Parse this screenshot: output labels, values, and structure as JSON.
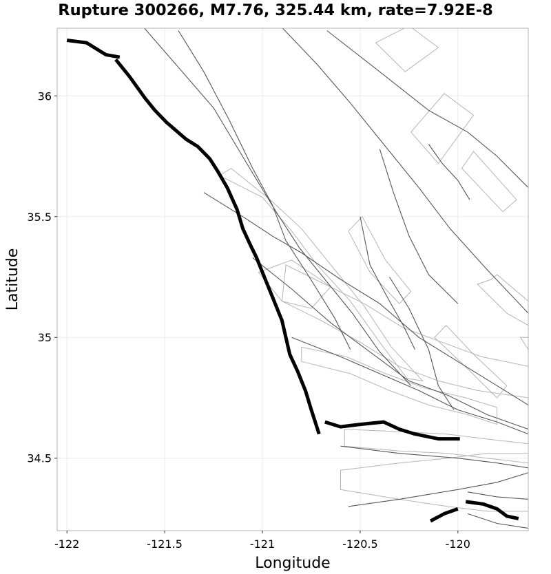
{
  "title": "Rupture 300266, M7.76, 325.44 km, rate=7.92E-8",
  "axes": {
    "x": {
      "label": "Longitude",
      "lim": [
        -122.05,
        -119.64
      ],
      "ticks": [
        -122,
        -121.5,
        -121,
        -120.5,
        -120
      ],
      "tick_labels": [
        "-122",
        "-121.5",
        "-121",
        "-120.5",
        "-120"
      ]
    },
    "y": {
      "label": "Latitude",
      "lim": [
        34.2,
        36.28
      ],
      "ticks": [
        34.5,
        35,
        35.5,
        36
      ],
      "tick_labels": [
        "34.5",
        "35",
        "35.5",
        "36"
      ]
    },
    "grid": true
  },
  "colors": {
    "rupture": "#000000",
    "fault_trace": "#555555",
    "fault_surface": "#b5b5b5",
    "gridline": "#ebebeb"
  },
  "map_data": {
    "rupture_sections": [
      [
        [
          -122.0,
          36.23
        ],
        [
          -121.9,
          36.22
        ],
        [
          -121.84,
          36.19
        ],
        [
          -121.8,
          36.17
        ],
        [
          -121.73,
          36.16
        ]
      ],
      [
        [
          -121.75,
          36.15
        ],
        [
          -121.68,
          36.08
        ],
        [
          -121.6,
          35.99
        ],
        [
          -121.55,
          35.94
        ],
        [
          -121.49,
          35.89
        ],
        [
          -121.39,
          35.82
        ],
        [
          -121.33,
          35.79
        ],
        [
          -121.27,
          35.74
        ],
        [
          -121.23,
          35.69
        ],
        [
          -121.18,
          35.62
        ],
        [
          -121.13,
          35.53
        ],
        [
          -121.1,
          35.45
        ],
        [
          -121.06,
          35.38
        ],
        [
          -121.03,
          35.33
        ],
        [
          -120.99,
          35.25
        ],
        [
          -120.95,
          35.17
        ],
        [
          -120.9,
          35.07
        ],
        [
          -120.86,
          34.93
        ],
        [
          -120.82,
          34.86
        ],
        [
          -120.78,
          34.78
        ],
        [
          -120.75,
          34.7
        ],
        [
          -120.71,
          34.6
        ]
      ],
      [
        [
          -120.68,
          34.65
        ],
        [
          -120.6,
          34.63
        ],
        [
          -120.5,
          34.64
        ],
        [
          -120.38,
          34.65
        ],
        [
          -120.3,
          34.62
        ],
        [
          -120.22,
          34.6
        ],
        [
          -120.1,
          34.58
        ],
        [
          -119.99,
          34.58
        ]
      ],
      [
        [
          -120.14,
          34.24
        ],
        [
          -120.07,
          34.27
        ],
        [
          -120.0,
          34.29
        ]
      ],
      [
        [
          -119.96,
          34.32
        ],
        [
          -119.87,
          34.31
        ],
        [
          -119.8,
          34.29
        ],
        [
          -119.75,
          34.26
        ],
        [
          -119.69,
          34.25
        ]
      ]
    ],
    "fault_traces": [
      [
        [
          -121.7,
          36.37
        ],
        [
          -121.25,
          35.95
        ],
        [
          -121.05,
          35.68
        ],
        [
          -120.93,
          35.52
        ],
        [
          -120.81,
          35.37
        ],
        [
          -120.66,
          35.22
        ],
        [
          -120.54,
          35.1
        ],
        [
          -120.4,
          34.94
        ],
        [
          -120.24,
          34.8
        ]
      ],
      [
        [
          -121.43,
          36.27
        ],
        [
          -121.3,
          36.1
        ],
        [
          -121.17,
          35.9
        ],
        [
          -121.05,
          35.7
        ],
        [
          -120.95,
          35.55
        ],
        [
          -120.88,
          35.4
        ],
        [
          -120.76,
          35.25
        ],
        [
          -120.63,
          35.08
        ],
        [
          -120.55,
          34.95
        ]
      ],
      [
        [
          -120.92,
          36.3
        ],
        [
          -120.72,
          36.13
        ],
        [
          -120.55,
          35.97
        ],
        [
          -120.38,
          35.8
        ],
        [
          -120.2,
          35.62
        ],
        [
          -120.04,
          35.45
        ],
        [
          -119.85,
          35.28
        ],
        [
          -119.64,
          35.1
        ]
      ],
      [
        [
          -120.67,
          36.27
        ],
        [
          -120.4,
          36.1
        ],
        [
          -120.15,
          35.94
        ],
        [
          -119.95,
          35.85
        ],
        [
          -119.8,
          35.75
        ],
        [
          -119.64,
          35.62
        ]
      ],
      [
        [
          -121.3,
          35.6
        ],
        [
          -121.1,
          35.5
        ],
        [
          -120.95,
          35.42
        ],
        [
          -120.8,
          35.35
        ],
        [
          -120.6,
          35.24
        ],
        [
          -120.4,
          35.14
        ],
        [
          -120.2,
          35.0
        ],
        [
          -120.0,
          34.9
        ],
        [
          -119.64,
          34.72
        ]
      ],
      [
        [
          -121.05,
          35.33
        ],
        [
          -120.85,
          35.2
        ],
        [
          -120.65,
          35.06
        ],
        [
          -120.45,
          34.94
        ],
        [
          -120.25,
          34.82
        ],
        [
          -120.05,
          34.76
        ],
        [
          -119.85,
          34.68
        ],
        [
          -119.64,
          34.62
        ]
      ],
      [
        [
          -120.85,
          35.0
        ],
        [
          -120.6,
          34.92
        ],
        [
          -120.4,
          34.85
        ],
        [
          -120.2,
          34.78
        ],
        [
          -120.0,
          34.7
        ],
        [
          -119.8,
          34.65
        ],
        [
          -119.64,
          34.6
        ]
      ],
      [
        [
          -120.5,
          35.5
        ],
        [
          -120.45,
          35.3
        ],
        [
          -120.35,
          35.15
        ],
        [
          -120.28,
          35.05
        ],
        [
          -120.22,
          34.95
        ]
      ],
      [
        [
          -120.35,
          35.25
        ],
        [
          -120.25,
          35.12
        ],
        [
          -120.15,
          34.95
        ],
        [
          -120.1,
          34.8
        ],
        [
          -120.02,
          34.7
        ]
      ],
      [
        [
          -120.6,
          34.55
        ],
        [
          -120.3,
          34.52
        ],
        [
          -120.0,
          34.5
        ],
        [
          -119.8,
          34.48
        ],
        [
          -119.64,
          34.46
        ]
      ],
      [
        [
          -120.56,
          34.3
        ],
        [
          -120.3,
          34.33
        ],
        [
          -120.0,
          34.37
        ],
        [
          -119.8,
          34.4
        ],
        [
          -119.64,
          34.44
        ]
      ],
      [
        [
          -119.95,
          34.36
        ],
        [
          -119.8,
          34.34
        ],
        [
          -119.64,
          34.33
        ]
      ],
      [
        [
          -119.95,
          34.27
        ],
        [
          -119.8,
          34.23
        ],
        [
          -119.64,
          34.21
        ]
      ],
      [
        [
          -120.15,
          35.8
        ],
        [
          -120.08,
          35.72
        ],
        [
          -120.0,
          35.65
        ],
        [
          -119.94,
          35.57
        ]
      ],
      [
        [
          -120.4,
          35.78
        ],
        [
          -120.33,
          35.6
        ],
        [
          -120.25,
          35.42
        ],
        [
          -120.15,
          35.26
        ],
        [
          -120.0,
          35.14
        ]
      ]
    ],
    "fault_surfaces": [
      [
        [
          -121.22,
          35.67
        ],
        [
          -121.0,
          35.58
        ],
        [
          -120.85,
          35.44
        ],
        [
          -120.72,
          35.3
        ],
        [
          -120.55,
          35.15
        ],
        [
          -120.4,
          34.98
        ],
        [
          -120.26,
          34.83
        ],
        [
          -120.18,
          34.82
        ],
        [
          -120.34,
          34.96
        ],
        [
          -120.48,
          35.13
        ],
        [
          -120.64,
          35.29
        ],
        [
          -120.8,
          35.45
        ],
        [
          -120.96,
          35.57
        ],
        [
          -121.16,
          35.7
        ]
      ],
      [
        [
          -120.9,
          35.15
        ],
        [
          -120.7,
          35.07
        ],
        [
          -120.5,
          34.98
        ],
        [
          -120.3,
          34.88
        ],
        [
          -120.1,
          34.82
        ],
        [
          -119.9,
          34.78
        ],
        [
          -119.64,
          34.75
        ],
        [
          -119.64,
          34.88
        ],
        [
          -119.88,
          34.92
        ],
        [
          -120.08,
          34.98
        ],
        [
          -120.28,
          35.04
        ],
        [
          -120.48,
          35.14
        ],
        [
          -120.68,
          35.22
        ],
        [
          -120.88,
          35.3
        ]
      ],
      [
        [
          -120.8,
          34.9
        ],
        [
          -120.55,
          34.85
        ],
        [
          -120.35,
          34.78
        ],
        [
          -120.15,
          34.72
        ],
        [
          -119.95,
          34.68
        ],
        [
          -119.8,
          34.64
        ],
        [
          -119.8,
          34.71
        ],
        [
          -119.96,
          34.75
        ],
        [
          -120.17,
          34.79
        ],
        [
          -120.37,
          34.85
        ],
        [
          -120.57,
          34.92
        ],
        [
          -120.8,
          34.96
        ]
      ],
      [
        [
          -120.58,
          34.55
        ],
        [
          -120.3,
          34.53
        ],
        [
          -120.05,
          34.52
        ],
        [
          -119.85,
          34.5
        ],
        [
          -119.64,
          34.48
        ],
        [
          -119.64,
          34.56
        ],
        [
          -119.86,
          34.58
        ],
        [
          -120.06,
          34.6
        ],
        [
          -120.3,
          34.61
        ],
        [
          -120.58,
          34.62
        ]
      ],
      [
        [
          -120.6,
          34.45
        ],
        [
          -120.3,
          34.48
        ],
        [
          -120.05,
          34.5
        ],
        [
          -119.85,
          34.52
        ],
        [
          -119.64,
          34.52
        ],
        [
          -119.64,
          34.28
        ],
        [
          -119.85,
          34.28
        ],
        [
          -120.05,
          34.3
        ],
        [
          -120.3,
          34.33
        ],
        [
          -120.6,
          34.37
        ]
      ],
      [
        [
          -120.42,
          36.22
        ],
        [
          -120.25,
          36.29
        ],
        [
          -120.1,
          36.2
        ],
        [
          -120.27,
          36.1
        ]
      ],
      [
        [
          -120.07,
          36.01
        ],
        [
          -119.92,
          35.92
        ],
        [
          -120.1,
          35.72
        ],
        [
          -120.24,
          35.85
        ]
      ],
      [
        [
          -119.92,
          35.77
        ],
        [
          -119.7,
          35.57
        ],
        [
          -119.77,
          35.52
        ],
        [
          -119.98,
          35.7
        ]
      ],
      [
        [
          -120.56,
          35.44
        ],
        [
          -120.45,
          35.27
        ],
        [
          -120.3,
          35.14
        ],
        [
          -120.24,
          35.19
        ],
        [
          -120.37,
          35.32
        ],
        [
          -120.49,
          35.5
        ]
      ],
      [
        [
          -119.9,
          35.22
        ],
        [
          -119.75,
          35.1
        ],
        [
          -119.64,
          35.05
        ],
        [
          -119.64,
          35.15
        ],
        [
          -119.8,
          35.26
        ],
        [
          -119.83,
          35.24
        ]
      ],
      [
        [
          -120.12,
          35.0
        ],
        [
          -119.95,
          34.87
        ],
        [
          -119.8,
          34.75
        ],
        [
          -119.75,
          34.8
        ],
        [
          -119.92,
          34.93
        ],
        [
          -120.06,
          35.05
        ]
      ],
      [
        [
          -119.68,
          35.0
        ],
        [
          -119.64,
          34.95
        ],
        [
          -119.64,
          35.0
        ]
      ],
      [
        [
          -121.02,
          35.27
        ],
        [
          -120.85,
          35.32
        ],
        [
          -120.65,
          35.21
        ],
        [
          -120.75,
          35.12
        ],
        [
          -120.9,
          35.15
        ]
      ]
    ]
  }
}
